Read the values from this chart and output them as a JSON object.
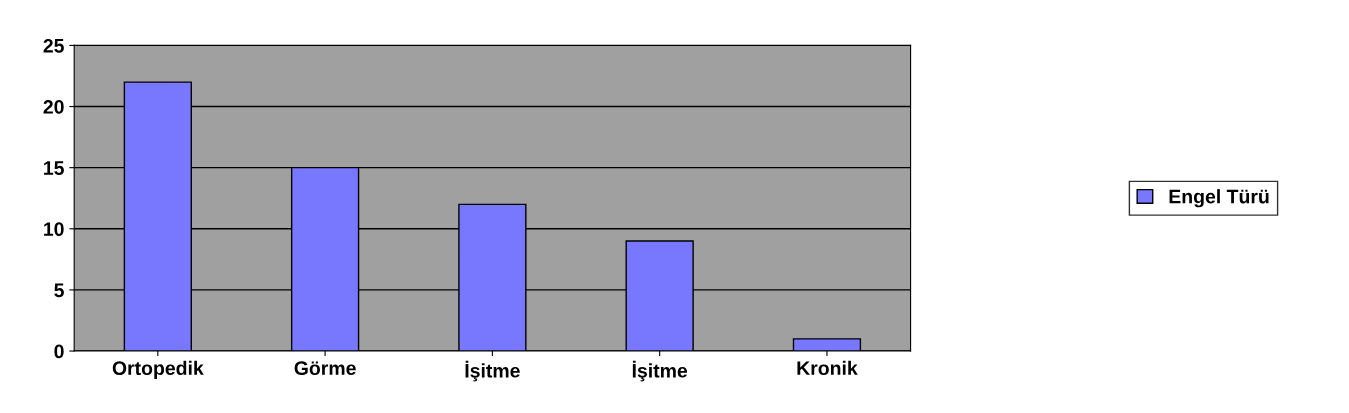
{
  "chart_data": {
    "type": "bar",
    "categories": [
      "Ortopedik",
      "Görme",
      "İşitme",
      "İşitme",
      "Kronik"
    ],
    "series": [
      {
        "name": "Engel Türü",
        "color": "#7878ff",
        "values": [
          22,
          15,
          12,
          9,
          1
        ]
      }
    ],
    "ylim": [
      0,
      25
    ],
    "yticks": [
      0,
      5,
      10,
      15,
      20,
      25
    ],
    "grid": "y",
    "legend": "right"
  }
}
